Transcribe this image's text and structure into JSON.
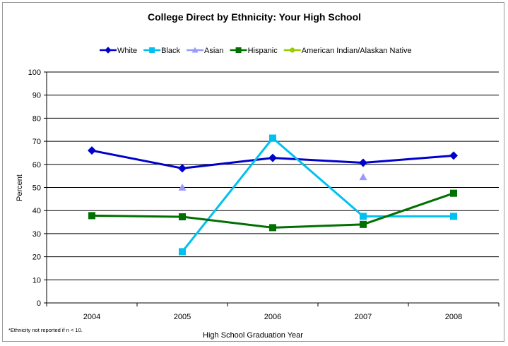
{
  "chart_data": {
    "type": "line",
    "title": "College Direct by Ethnicity: Your High School",
    "xlabel": "High School Graduation Year",
    "ylabel": "Percent",
    "ylim": [
      0,
      100
    ],
    "ytick_step": 10,
    "categories": [
      "2004",
      "2005",
      "2006",
      "2007",
      "2008"
    ],
    "grid": true,
    "legend_position": "top",
    "footnote": "*Ethnicity not reported if n < 10.",
    "series": [
      {
        "name": "White",
        "color": "#0000CC",
        "marker": "diamond",
        "values": [
          66,
          58.3,
          62.8,
          60.7,
          63.8
        ]
      },
      {
        "name": "Black",
        "color": "#00C0F0",
        "marker": "square",
        "values": [
          null,
          22.2,
          71.4,
          37.5,
          37.5
        ]
      },
      {
        "name": "Asian",
        "color": "#9999FF",
        "marker": "triangle",
        "values": [
          null,
          50,
          null,
          54.5,
          null
        ]
      },
      {
        "name": "Hispanic",
        "color": "#007000",
        "marker": "square",
        "values": [
          37.8,
          37.3,
          32.6,
          34,
          47.5
        ]
      },
      {
        "name": "American Indian/Alaskan Native",
        "color": "#99CC00",
        "marker": "circle",
        "values": [
          null,
          null,
          null,
          null,
          null
        ]
      }
    ]
  }
}
